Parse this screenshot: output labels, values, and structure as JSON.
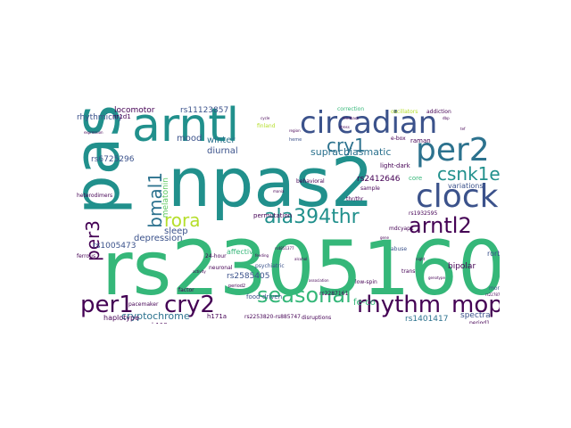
{
  "palette": {
    "purple": "#440154",
    "indigo": "#3b528b",
    "teal": "#21908c",
    "green": "#35b779",
    "lime": "#5ec962",
    "yellow": "#b5de2b",
    "cyan": "#2c728e"
  },
  "words": {
    "npas2": "npas2",
    "rs2305160": "rs2305160",
    "pas": "pas",
    "arntl": "arntl",
    "circadian": "circadian",
    "per2": "per2",
    "clock": "clock",
    "cry1": "cry1",
    "csnk1e": "csnk1e",
    "seasonal": "seasonal",
    "rhythm": "rhythm",
    "mop4": "mop4",
    "per1": "per1",
    "cry2": "cry2",
    "ala394thr": "ala394thr",
    "arntl2": "arntl2",
    "rora": "rora",
    "bmal1": "bmal1",
    "per3": "per3",
    "cryptochrome": "cryptochrome",
    "mood": "mood",
    "diurnal": "diurnal",
    "winter": "winter",
    "sleep": "sleep",
    "depression": "depression",
    "melatonin": "melatonin",
    "locomotor": "locomotor",
    "rhythmicity": "rhythmicity",
    "rs11123857": "rs11123857",
    "rs6725296": "rs6725296",
    "rs1005473": "rs1005473",
    "rs2585405": "rs2585405",
    "rs2412646": "rs2412646",
    "rs1401417": "rs1401417",
    "rs2287161": "rs2287161",
    "suprachiasmatic": "suprachiasmatic",
    "light_dark": "light-dark",
    "variations": "variations",
    "core": "core",
    "rorb": "rorb",
    "bipolar": "bipolar",
    "aanat": "aanat",
    "fe_co": "fe-co",
    "spectra": "spectra",
    "haplotype": "haplotype",
    "pacemaker": "pacemaker",
    "food_driven": "food-driven",
    "permutation": "permutation",
    "affective": "affective",
    "h119a": "h119a",
    "h171a": "h171a",
    "heterodimers": "heterodimers",
    "nr1d1": "nr1d1",
    "monoxide": "monoxide",
    "mop3": "mop3",
    "twenty_four_hour": "24-hour",
    "raman": "raman",
    "e_box": "e-box",
    "addiction": "addiction",
    "oscillators": "oscillators",
    "abuse": "abuse",
    "correction": "correction",
    "behavioral": "behavioral",
    "psychiatric": "psychiatric",
    "neuronal": "neuronal",
    "social": "social",
    "sample": "sample",
    "trans": "trans",
    "low_spin": "low-spin",
    "thr_thr": "thr/thr",
    "rs2253820": "rs2253820-rs885747",
    "period1": "period1",
    "finland": "finland",
    "rs1932595": "rs1932595",
    "disruptions": "disruptions",
    "factor": "factor",
    "ferrous": "ferrous",
    "period2": "period2",
    "mdcyap1": "mdcyap1",
    "small_words": [
      "rs2278749",
      "heme",
      "genotype",
      "feedback",
      "mania",
      "rs4851377",
      "gene",
      "alcohol",
      "activity",
      "cycle",
      "feeding",
      "expression",
      "region",
      "dbp",
      "night",
      "stress",
      "tef",
      "association"
    ]
  }
}
